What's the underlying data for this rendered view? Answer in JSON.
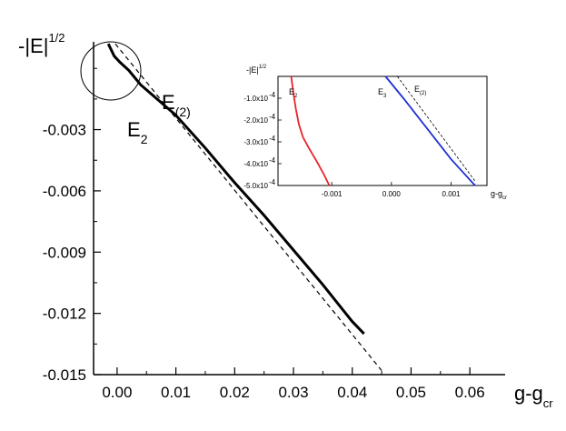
{
  "chart_data": [
    {
      "type": "line",
      "title": "",
      "xlabel_main": "g-g",
      "xlabel_sub": "cr",
      "ylabel_main": "-|E|",
      "ylabel_sup": "1/2",
      "xlim": [
        -0.004,
        0.066
      ],
      "ylim": [
        -0.015,
        0.0013
      ],
      "x_ticks": [
        0.0,
        0.01,
        0.02,
        0.03,
        0.04,
        0.05,
        0.06
      ],
      "x_tick_labels": [
        "0.00",
        "0.01",
        "0.02",
        "0.03",
        "0.04",
        "0.05",
        "0.06"
      ],
      "y_ticks": [
        -0.003,
        -0.006,
        -0.009,
        -0.012,
        -0.015
      ],
      "y_tick_labels": [
        "-0.003",
        "-0.006",
        "-0.009",
        "-0.012",
        "-0.015"
      ],
      "grid": false,
      "series": [
        {
          "name": "E2",
          "label_main": "E",
          "label_sub": "2",
          "style": "solid",
          "color": "#000000",
          "x": [
            -0.0015,
            -0.0005,
            0.0005,
            0.002,
            0.004,
            0.006,
            0.01,
            0.015,
            0.02,
            0.025,
            0.03,
            0.035,
            0.04,
            0.042
          ],
          "y": [
            0.0012,
            0.0006,
            0.0003,
            -0.0001,
            -0.0008,
            -0.0013,
            -0.0023,
            -0.0039,
            -0.0056,
            -0.0072,
            -0.0089,
            -0.0106,
            -0.0124,
            -0.013
          ]
        },
        {
          "name": "E(2)",
          "label_main": "E",
          "label_sub": "(2)",
          "style": "dashed",
          "color": "#000000",
          "x": [
            -0.0003,
            0.045
          ],
          "y": [
            0.0012,
            -0.0148
          ]
        }
      ],
      "annotations": [
        "circle highlighting region near g-gcr = 0"
      ]
    },
    {
      "type": "line",
      "title": "",
      "xlabel": "g-g",
      "xlabel_sub": "cr",
      "ylabel_main": "-|E|",
      "ylabel_sup": "1/2",
      "xlim": [
        -0.0019,
        0.0016
      ],
      "ylim": [
        -0.0005,
        0.0
      ],
      "x_ticks": [
        -0.001,
        0.0,
        0.001
      ],
      "x_tick_labels": [
        "-0.001",
        "0.000",
        "0.001"
      ],
      "y_ticks": [
        -0.0001,
        -0.0002,
        -0.0003,
        -0.0004,
        -0.0005
      ],
      "y_tick_labels": [
        "-1.0x10",
        "-2.0x10",
        "-3.0x10",
        "-4.0x10",
        "-5.0x10"
      ],
      "y_tick_exponent": "-4",
      "series": [
        {
          "name": "E2",
          "label_main": "E",
          "label_sub": "2",
          "style": "solid",
          "color": "#e8232a",
          "x": [
            -0.00168,
            -0.00164,
            -0.0016,
            -0.00155,
            -0.00148,
            -0.00138,
            -0.00125,
            -0.00113,
            -0.00104
          ],
          "y": [
            0.0,
            -8e-05,
            -0.00015,
            -0.00022,
            -0.00028,
            -0.00033,
            -0.00039,
            -0.00045,
            -0.0005
          ]
        },
        {
          "name": "E3",
          "label_main": "E",
          "label_sub": "3",
          "style": "solid",
          "color": "#1f2fd6",
          "x": [
            -0.0001,
            0.0002,
            0.0006,
            0.001,
            0.0014
          ],
          "y": [
            0.0,
            -0.0001,
            -0.00024,
            -0.00038,
            -0.0005
          ]
        },
        {
          "name": "E(2)",
          "label_main": "E",
          "label_sub": "(2)",
          "style": "dashed",
          "color": "#000000",
          "x": [
            0.0001,
            0.0014
          ],
          "y": [
            0.0,
            -0.00048
          ]
        }
      ]
    }
  ]
}
